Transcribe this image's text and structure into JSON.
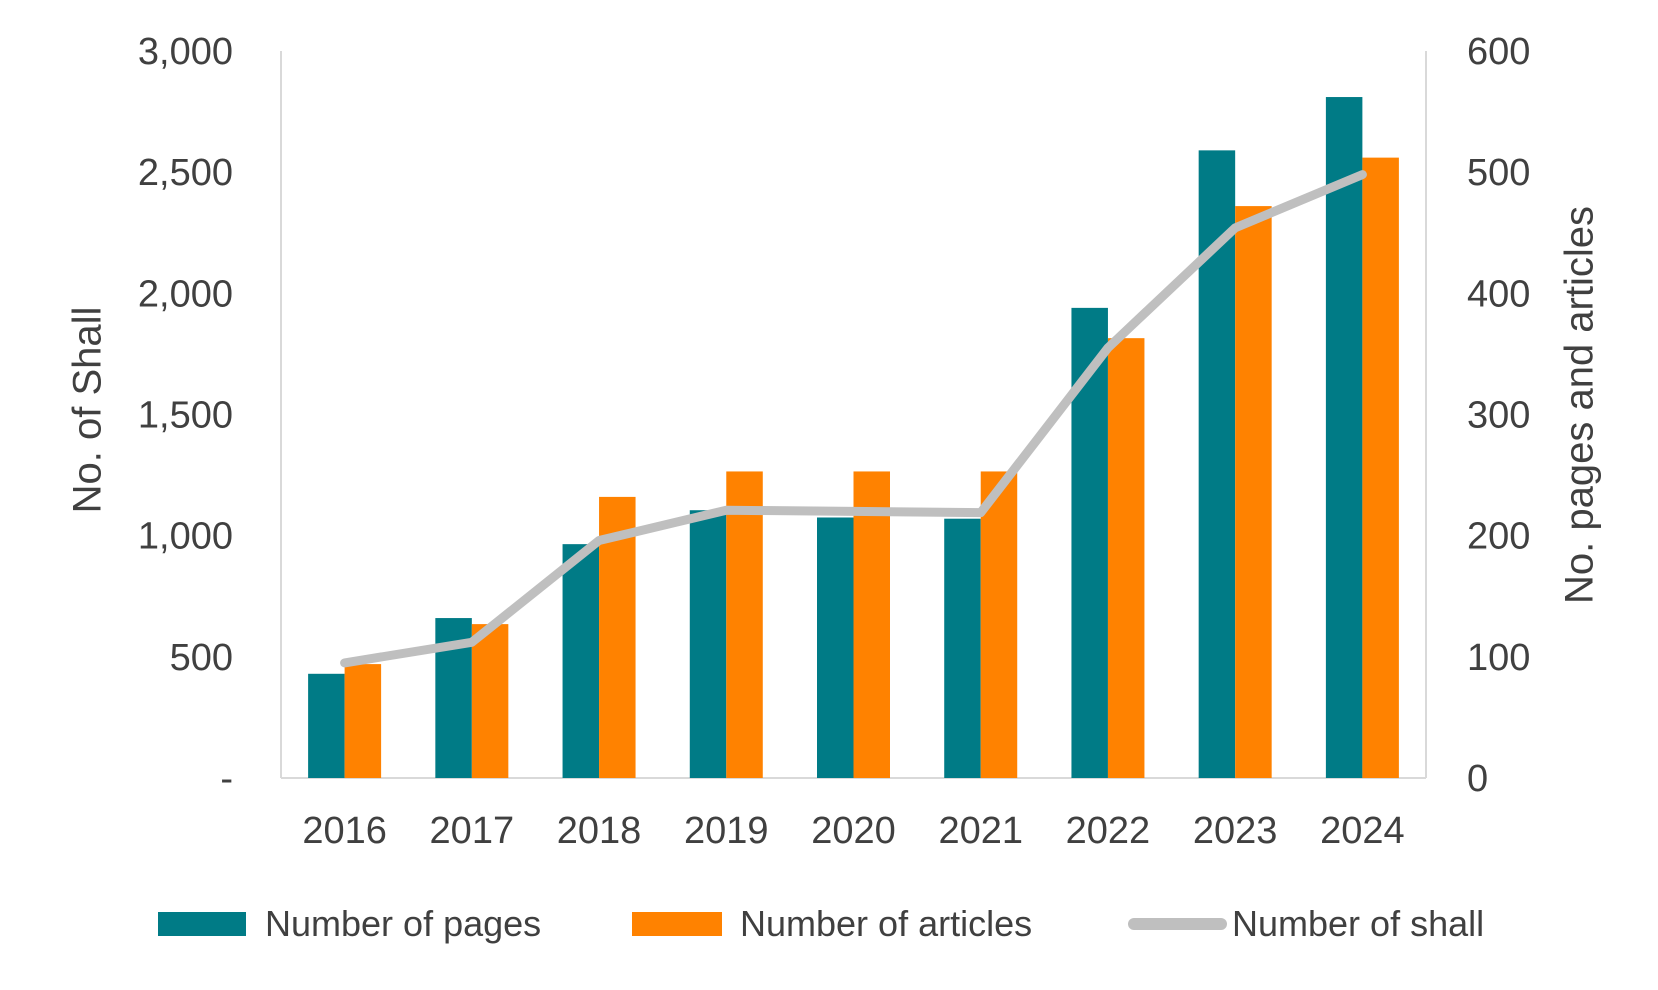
{
  "chart_data": {
    "type": "combo",
    "title": "",
    "categories": [
      "2016",
      "2017",
      "2018",
      "2019",
      "2020",
      "2021",
      "2022",
      "2023",
      "2024"
    ],
    "series": [
      {
        "name": "Number of pages",
        "type": "bar",
        "axis": "right",
        "color": "#007B86",
        "values": [
          86,
          132,
          193,
          221,
          215,
          214,
          388,
          518,
          562
        ]
      },
      {
        "name": "Number of articles",
        "type": "bar",
        "axis": "right",
        "color": "#FF8200",
        "values": [
          94,
          127,
          232,
          253,
          253,
          253,
          363,
          472,
          512
        ]
      },
      {
        "name": "Number of shall",
        "type": "line",
        "axis": "left",
        "color": "#BFBFBF",
        "values": [
          475,
          560,
          980,
          1105,
          1100,
          1095,
          1775,
          2270,
          2490
        ]
      }
    ],
    "left_axis": {
      "title": "No. of Shall",
      "min": 0,
      "max": 3000,
      "tick_interval": 500,
      "tick_labels": [
        "-",
        "500",
        "1,000",
        "1,500",
        "2,000",
        "2,500",
        "3,000"
      ]
    },
    "right_axis": {
      "title": "No. pages and articles",
      "min": 0,
      "max": 600,
      "tick_interval": 100,
      "tick_labels": [
        "0",
        "100",
        "200",
        "300",
        "400",
        "500",
        "600"
      ]
    },
    "legend_position": "bottom",
    "grid": false
  },
  "colors": {
    "axis_line": "#D9D9D9",
    "text": "#404040",
    "background": "#FFFFFF"
  }
}
